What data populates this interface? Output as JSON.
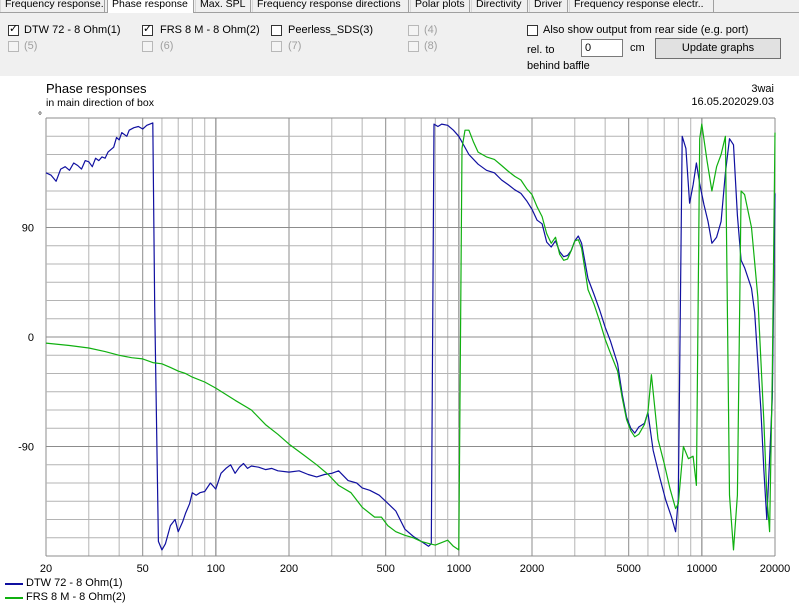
{
  "tabs": [
    "Frequency response.",
    "Phase response",
    "Max. SPL",
    "Frequency response directions",
    "Polar plots",
    "Directivity",
    "Driver",
    "Frequency response electr.."
  ],
  "active_tab": "Phase response",
  "drivers": [
    {
      "label": "DTW 72 - 8 Ohm(1)",
      "checked": true,
      "enabled": true
    },
    {
      "label": "FRS 8 M - 8 Ohm(2)",
      "checked": true,
      "enabled": true
    },
    {
      "label": "Peerless_SDS(3)",
      "checked": false,
      "enabled": true
    },
    {
      "label": "(4)",
      "checked": false,
      "enabled": false
    },
    {
      "label": "(5)",
      "checked": false,
      "enabled": false
    },
    {
      "label": "(6)",
      "checked": false,
      "enabled": false
    },
    {
      "label": "(7)",
      "checked": false,
      "enabled": false
    },
    {
      "label": "(8)",
      "checked": false,
      "enabled": false
    }
  ],
  "rear_option": {
    "label": "Also show output from rear side (e.g. port)",
    "checked": false
  },
  "rel_to_label": "rel. to",
  "behind_baffle_label": "behind baffle",
  "offset_value": "0",
  "offset_unit": "cm",
  "update_button": "Update graphs",
  "plot": {
    "title": "Phase responses",
    "subtitle": "in main direction of box",
    "brand": "3wai",
    "date": "16.05.202029.03",
    "degree_mark": "°"
  },
  "colors": {
    "series1": "#1010a0",
    "series2": "#10b010",
    "grid": "#b4b4b4"
  },
  "chart_data": {
    "type": "line",
    "x_scale": "log",
    "xlim": [
      20,
      20000
    ],
    "ylim": [
      -180,
      180
    ],
    "x_ticks": [
      20,
      50,
      100,
      200,
      500,
      1000,
      2000,
      5000,
      10000,
      20000
    ],
    "x_tick_labels": [
      "20",
      "50",
      "100",
      "200",
      "500",
      "1000",
      "2000",
      "5000",
      "10000",
      "20000"
    ],
    "y_ticks": [
      90,
      0,
      -90
    ],
    "y_tick_labels": [
      "90",
      "0",
      "-90"
    ],
    "grid": true,
    "legend_position": "bottom-left",
    "series": [
      {
        "name": "DTW 72 - 8 Ohm(1)",
        "color": "#1010a0",
        "points": [
          [
            20,
            135
          ],
          [
            21,
            133
          ],
          [
            22,
            128
          ],
          [
            23,
            138
          ],
          [
            24,
            140
          ],
          [
            25,
            137
          ],
          [
            26,
            143
          ],
          [
            27,
            141
          ],
          [
            28,
            138
          ],
          [
            29,
            145
          ],
          [
            30,
            144
          ],
          [
            31,
            140
          ],
          [
            32,
            147
          ],
          [
            33,
            145
          ],
          [
            34,
            148
          ],
          [
            35,
            147
          ],
          [
            36,
            152
          ],
          [
            38,
            156
          ],
          [
            39,
            164
          ],
          [
            40,
            162
          ],
          [
            41,
            168
          ],
          [
            43,
            165
          ],
          [
            44,
            170
          ],
          [
            46,
            172
          ],
          [
            48,
            173
          ],
          [
            50,
            171
          ],
          [
            52,
            174
          ],
          [
            55,
            176
          ],
          [
            56,
            25
          ],
          [
            58,
            -168
          ],
          [
            60,
            -175
          ],
          [
            62,
            -170
          ],
          [
            65,
            -155
          ],
          [
            68,
            -150
          ],
          [
            70,
            -160
          ],
          [
            73,
            -152
          ],
          [
            75,
            -145
          ],
          [
            78,
            -137
          ],
          [
            80,
            -128
          ],
          [
            83,
            -130
          ],
          [
            86,
            -128
          ],
          [
            90,
            -127
          ],
          [
            95,
            -120
          ],
          [
            100,
            -125
          ],
          [
            105,
            -112
          ],
          [
            110,
            -108
          ],
          [
            115,
            -105
          ],
          [
            120,
            -112
          ],
          [
            125,
            -107
          ],
          [
            130,
            -104
          ],
          [
            135,
            -108
          ],
          [
            140,
            -106
          ],
          [
            150,
            -107
          ],
          [
            160,
            -109
          ],
          [
            170,
            -108
          ],
          [
            180,
            -110
          ],
          [
            200,
            -111
          ],
          [
            220,
            -110
          ],
          [
            240,
            -113
          ],
          [
            260,
            -115
          ],
          [
            280,
            -113
          ],
          [
            300,
            -112
          ],
          [
            320,
            -110
          ],
          [
            350,
            -118
          ],
          [
            380,
            -120
          ],
          [
            400,
            -124
          ],
          [
            430,
            -126
          ],
          [
            470,
            -130
          ],
          [
            500,
            -135
          ],
          [
            550,
            -143
          ],
          [
            600,
            -158
          ],
          [
            650,
            -164
          ],
          [
            700,
            -168
          ],
          [
            750,
            -172
          ],
          [
            770,
            -170
          ],
          [
            790,
            175
          ],
          [
            820,
            173
          ],
          [
            850,
            175
          ],
          [
            900,
            174
          ],
          [
            950,
            170
          ],
          [
            1000,
            165
          ],
          [
            1100,
            150
          ],
          [
            1200,
            142
          ],
          [
            1300,
            137
          ],
          [
            1400,
            135
          ],
          [
            1500,
            129
          ],
          [
            1600,
            125
          ],
          [
            1700,
            121
          ],
          [
            1800,
            118
          ],
          [
            1900,
            112
          ],
          [
            2000,
            105
          ],
          [
            2100,
            96
          ],
          [
            2200,
            93
          ],
          [
            2300,
            78
          ],
          [
            2400,
            74
          ],
          [
            2500,
            79
          ],
          [
            2600,
            70
          ],
          [
            2700,
            66
          ],
          [
            2800,
            67
          ],
          [
            2900,
            71
          ],
          [
            3000,
            79
          ],
          [
            3100,
            83
          ],
          [
            3200,
            77
          ],
          [
            3400,
            48
          ],
          [
            3600,
            35
          ],
          [
            3800,
            22
          ],
          [
            4000,
            8
          ],
          [
            4200,
            -3
          ],
          [
            4500,
            -22
          ],
          [
            4700,
            -47
          ],
          [
            4900,
            -66
          ],
          [
            5100,
            -75
          ],
          [
            5300,
            -79
          ],
          [
            5500,
            -74
          ],
          [
            5800,
            -71
          ],
          [
            6000,
            -62
          ],
          [
            6300,
            -93
          ],
          [
            6700,
            -115
          ],
          [
            7100,
            -134
          ],
          [
            7500,
            -148
          ],
          [
            7800,
            -160
          ],
          [
            8000,
            -133
          ],
          [
            8300,
            165
          ],
          [
            8600,
            155
          ],
          [
            8900,
            110
          ],
          [
            9200,
            125
          ],
          [
            9500,
            143
          ],
          [
            9800,
            126
          ],
          [
            10200,
            109
          ],
          [
            10600,
            95
          ],
          [
            11000,
            77
          ],
          [
            11500,
            82
          ],
          [
            12000,
            95
          ],
          [
            12500,
            135
          ],
          [
            13000,
            163
          ],
          [
            13500,
            158
          ],
          [
            14000,
            100
          ],
          [
            14500,
            63
          ],
          [
            15000,
            57
          ],
          [
            16000,
            40
          ],
          [
            16500,
            20
          ],
          [
            17000,
            -20
          ],
          [
            17500,
            -60
          ],
          [
            18000,
            -110
          ],
          [
            18500,
            -150
          ],
          [
            19000,
            -100
          ],
          [
            19500,
            -50
          ],
          [
            20000,
            118
          ]
        ]
      },
      {
        "name": "FRS 8 M - 8 Ohm(2)",
        "color": "#10b010",
        "points": [
          [
            20,
            -5
          ],
          [
            25,
            -7
          ],
          [
            30,
            -9
          ],
          [
            35,
            -12
          ],
          [
            40,
            -15
          ],
          [
            45,
            -17
          ],
          [
            50,
            -18
          ],
          [
            55,
            -21
          ],
          [
            60,
            -22
          ],
          [
            65,
            -25
          ],
          [
            70,
            -28
          ],
          [
            75,
            -30
          ],
          [
            80,
            -33
          ],
          [
            90,
            -37
          ],
          [
            100,
            -42
          ],
          [
            120,
            -52
          ],
          [
            140,
            -60
          ],
          [
            160,
            -72
          ],
          [
            180,
            -80
          ],
          [
            200,
            -88
          ],
          [
            230,
            -97
          ],
          [
            260,
            -105
          ],
          [
            290,
            -113
          ],
          [
            320,
            -122
          ],
          [
            360,
            -128
          ],
          [
            400,
            -140
          ],
          [
            450,
            -148
          ],
          [
            480,
            -148
          ],
          [
            510,
            -155
          ],
          [
            550,
            -160
          ],
          [
            600,
            -163
          ],
          [
            650,
            -165
          ],
          [
            700,
            -168
          ],
          [
            760,
            -170
          ],
          [
            800,
            -171
          ],
          [
            850,
            -169
          ],
          [
            900,
            -167
          ],
          [
            950,
            -172
          ],
          [
            1000,
            -175
          ],
          [
            1030,
            155
          ],
          [
            1060,
            170
          ],
          [
            1100,
            170
          ],
          [
            1150,
            160
          ],
          [
            1200,
            152
          ],
          [
            1300,
            148
          ],
          [
            1400,
            146
          ],
          [
            1500,
            141
          ],
          [
            1600,
            136
          ],
          [
            1700,
            132
          ],
          [
            1800,
            129
          ],
          [
            1900,
            122
          ],
          [
            2000,
            117
          ],
          [
            2100,
            107
          ],
          [
            2200,
            99
          ],
          [
            2300,
            85
          ],
          [
            2400,
            77
          ],
          [
            2500,
            82
          ],
          [
            2600,
            68
          ],
          [
            2700,
            63
          ],
          [
            2800,
            64
          ],
          [
            2900,
            71
          ],
          [
            3000,
            79
          ],
          [
            3100,
            80
          ],
          [
            3200,
            73
          ],
          [
            3400,
            39
          ],
          [
            3600,
            27
          ],
          [
            3800,
            13
          ],
          [
            4000,
            -2
          ],
          [
            4200,
            -13
          ],
          [
            4500,
            -28
          ],
          [
            4700,
            -50
          ],
          [
            4900,
            -68
          ],
          [
            5100,
            -77
          ],
          [
            5300,
            -82
          ],
          [
            5500,
            -80
          ],
          [
            5800,
            -72
          ],
          [
            6000,
            -62
          ],
          [
            6200,
            -31
          ],
          [
            6600,
            -84
          ],
          [
            7000,
            -104
          ],
          [
            7400,
            -125
          ],
          [
            7800,
            -141
          ],
          [
            8000,
            -137
          ],
          [
            8400,
            -90
          ],
          [
            8800,
            -100
          ],
          [
            9200,
            -98
          ],
          [
            9500,
            -122
          ],
          [
            9800,
            163
          ],
          [
            10000,
            175
          ],
          [
            10500,
            145
          ],
          [
            11000,
            120
          ],
          [
            11500,
            140
          ],
          [
            12000,
            150
          ],
          [
            12500,
            165
          ],
          [
            13000,
            -130
          ],
          [
            13500,
            -175
          ],
          [
            14000,
            -130
          ],
          [
            14500,
            120
          ],
          [
            15000,
            117
          ],
          [
            16000,
            90
          ],
          [
            17000,
            33
          ],
          [
            18000,
            -70
          ],
          [
            18500,
            -130
          ],
          [
            19000,
            -160
          ],
          [
            19500,
            -30
          ],
          [
            20000,
            168
          ]
        ]
      }
    ]
  },
  "legend": [
    {
      "label": "DTW 72 - 8 Ohm(1)",
      "color": "#1010a0"
    },
    {
      "label": "FRS 8 M - 8 Ohm(2)",
      "color": "#10b010"
    }
  ]
}
